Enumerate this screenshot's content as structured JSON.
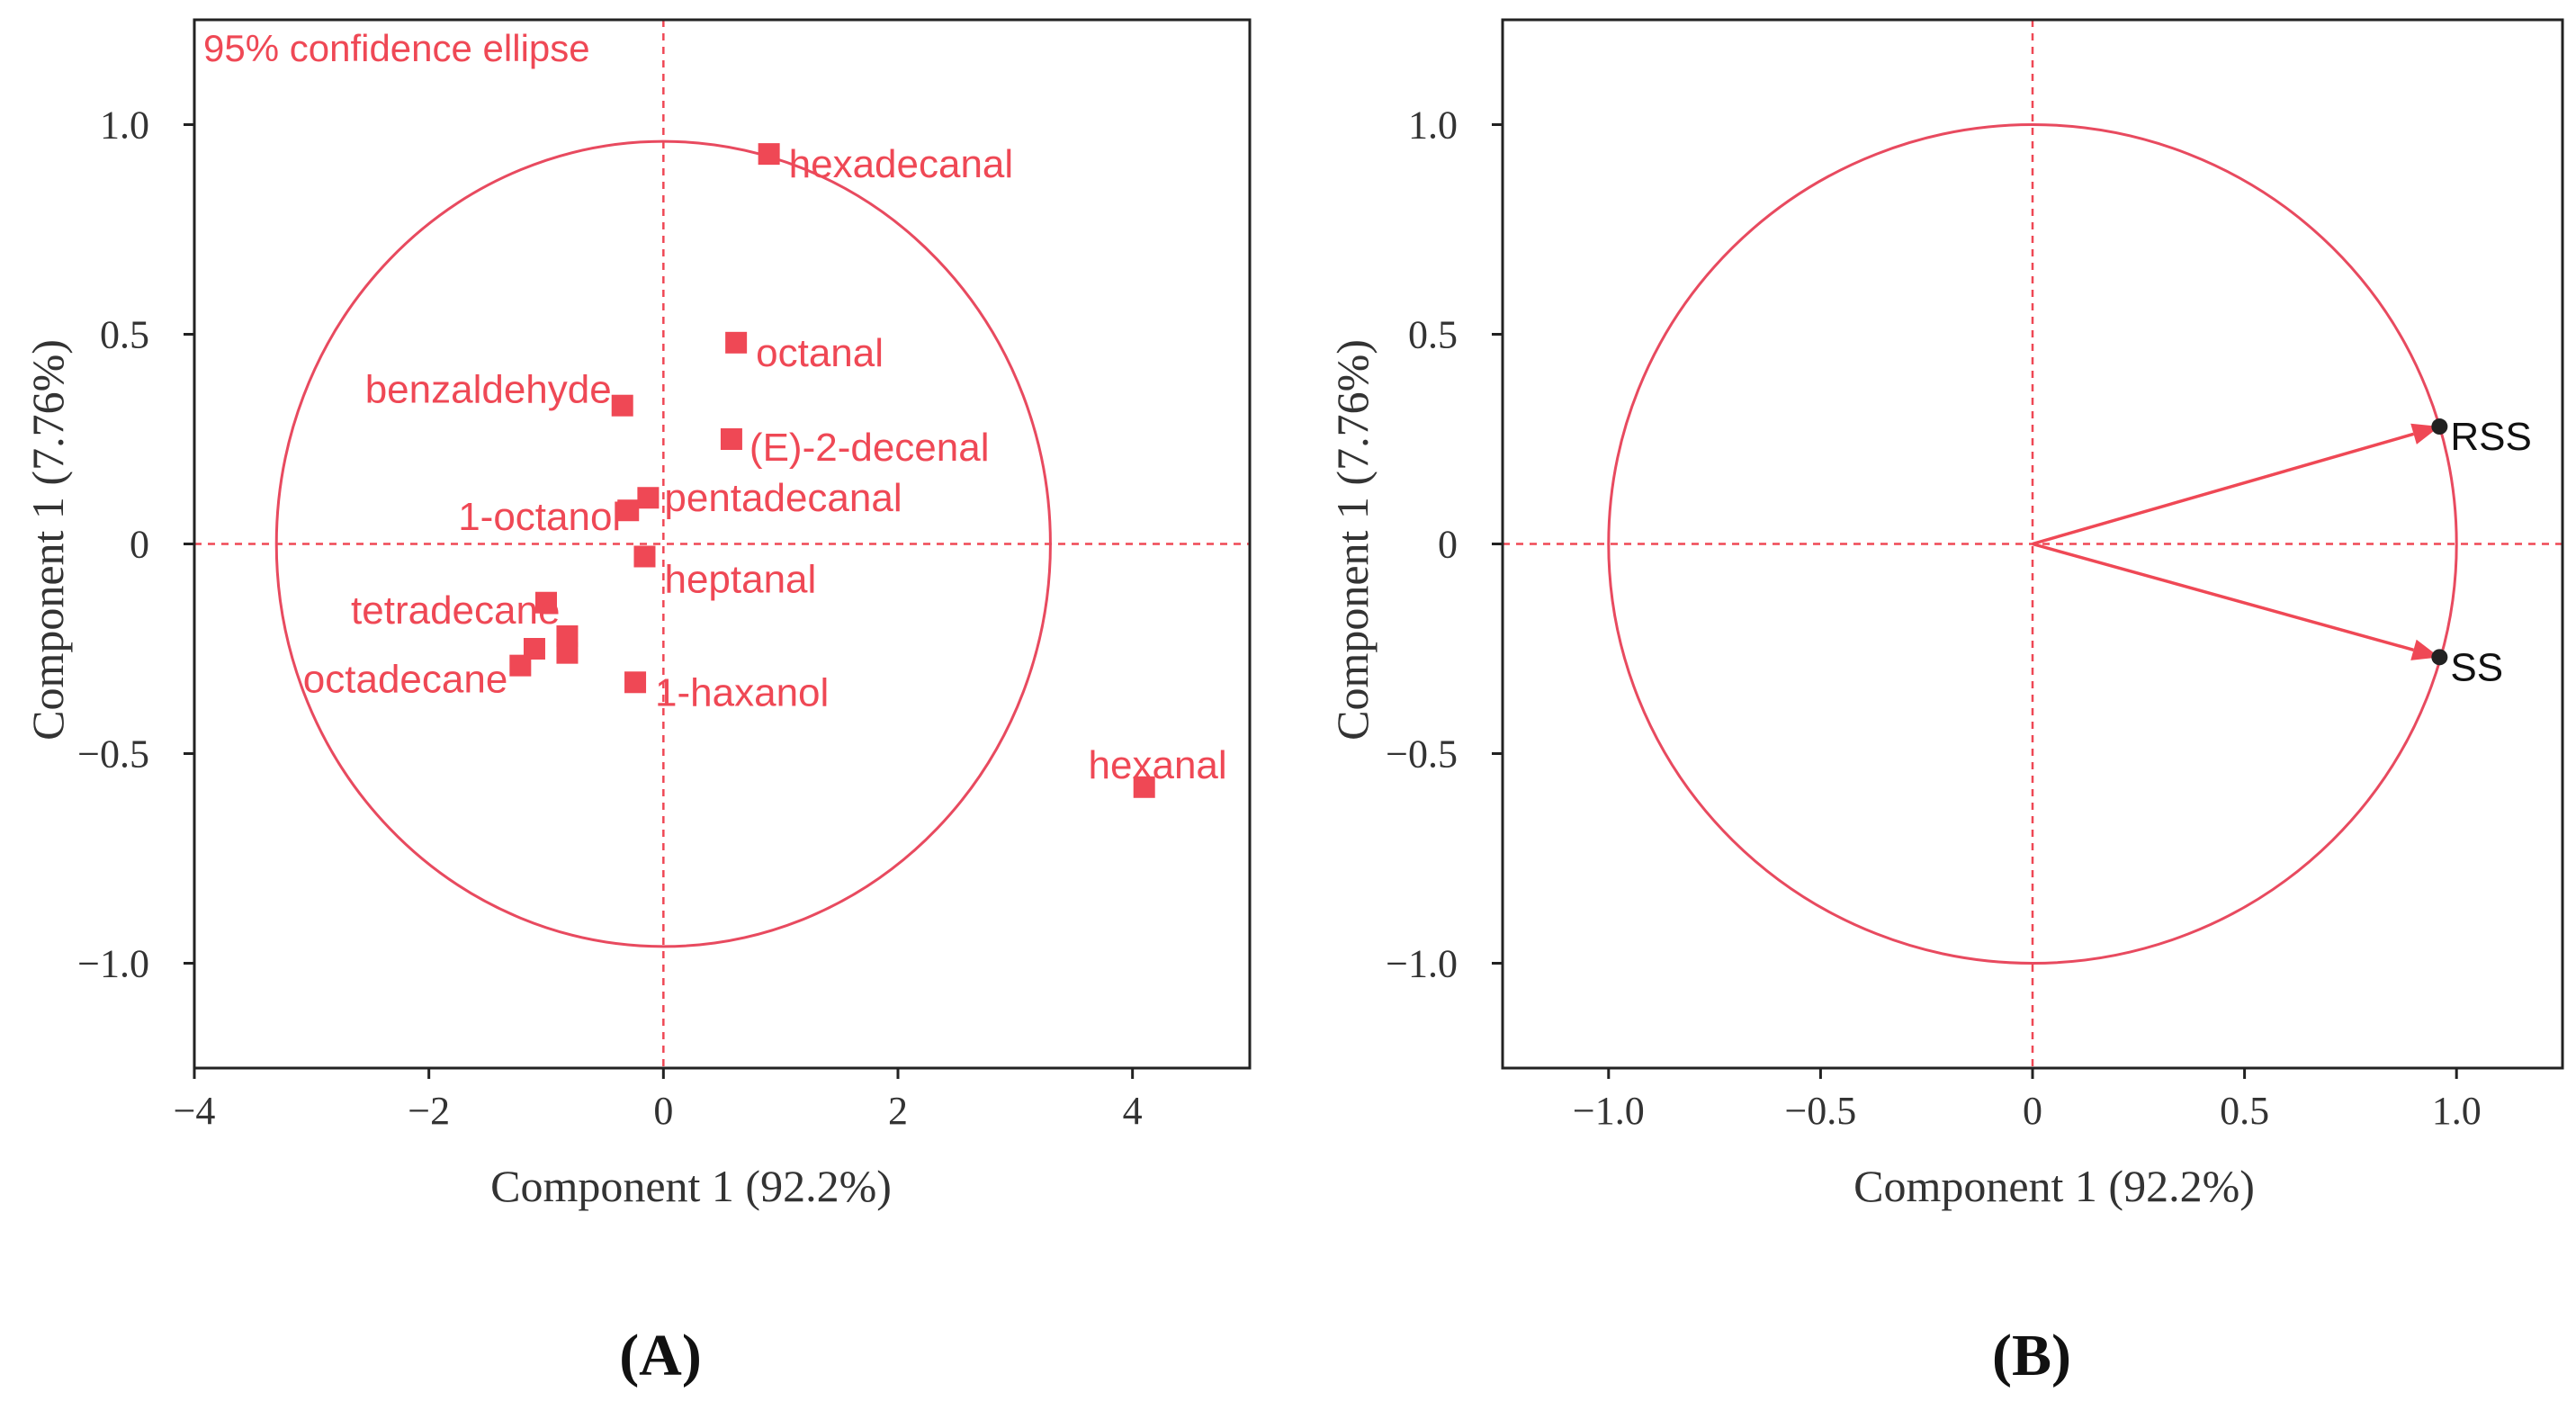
{
  "chart_data": [
    {
      "type": "scatter",
      "panel_label": "(A)",
      "xlabel": "Component 1 (92.2%)",
      "ylabel": "Component 1 (7.76%)",
      "annotation": "95% confidence ellipse",
      "xlim": [
        -4,
        5
      ],
      "ylim": [
        -1.25,
        1.25
      ],
      "xticks": [
        -4,
        -2,
        0,
        2,
        4
      ],
      "xtick_labels": [
        "−4",
        "−2",
        "0",
        "2",
        "4"
      ],
      "yticks": [
        1.0,
        0.5,
        0,
        -0.5,
        -1.0
      ],
      "ytick_labels": [
        "1.0",
        "0.5",
        "0",
        "−0.5",
        "−1.0"
      ],
      "zero_lines": true,
      "ellipse": {
        "cx": 0,
        "cy": 0,
        "rx": 3.3,
        "ry": 0.96
      },
      "points": [
        {
          "label": "hexadecanal",
          "x": 0.9,
          "y": 0.93
        },
        {
          "label": "octanal",
          "x": 0.62,
          "y": 0.48
        },
        {
          "label": "benzaldehyde",
          "x": -0.35,
          "y": 0.33
        },
        {
          "label": "(E)-2-decenal",
          "x": 0.58,
          "y": 0.25
        },
        {
          "label": "pentadecanal",
          "x": -0.13,
          "y": 0.11
        },
        {
          "label": "1-octanol",
          "x": -0.3,
          "y": 0.08
        },
        {
          "label": "heptanal",
          "x": -0.16,
          "y": -0.03
        },
        {
          "label": "",
          "x": -1.0,
          "y": -0.14
        },
        {
          "label": "tetradecane",
          "x": -0.82,
          "y": -0.22
        },
        {
          "label": "",
          "x": -0.82,
          "y": -0.26
        },
        {
          "label": "",
          "x": -1.1,
          "y": -0.25
        },
        {
          "label": "octadecane",
          "x": -1.22,
          "y": -0.29
        },
        {
          "label": "1-haxanol",
          "x": -0.24,
          "y": -0.33
        },
        {
          "label": "hexanal",
          "x": 4.1,
          "y": -0.58
        }
      ]
    },
    {
      "type": "scatter",
      "panel_label": "(B)",
      "xlabel": "Component 1 (92.2%)",
      "ylabel": "Component 1 (7.76%)",
      "xlim": [
        -1.25,
        1.25
      ],
      "ylim": [
        -1.25,
        1.25
      ],
      "xticks": [
        -1.0,
        -0.5,
        0,
        0.5,
        1.0
      ],
      "xtick_labels": [
        "−1.0",
        "−0.5",
        "0",
        "0.5",
        "1.0"
      ],
      "yticks": [
        1.0,
        0.5,
        0,
        -0.5,
        -1.0
      ],
      "ytick_labels": [
        "1.0",
        "0.5",
        "0",
        "−0.5",
        "−1.0"
      ],
      "zero_lines": true,
      "unit_circle": {
        "cx": 0,
        "cy": 0,
        "r": 1.0
      },
      "vectors": [
        {
          "label": "RSS",
          "x": 0.96,
          "y": 0.28
        },
        {
          "label": "SS",
          "x": 0.96,
          "y": -0.27
        }
      ]
    }
  ]
}
